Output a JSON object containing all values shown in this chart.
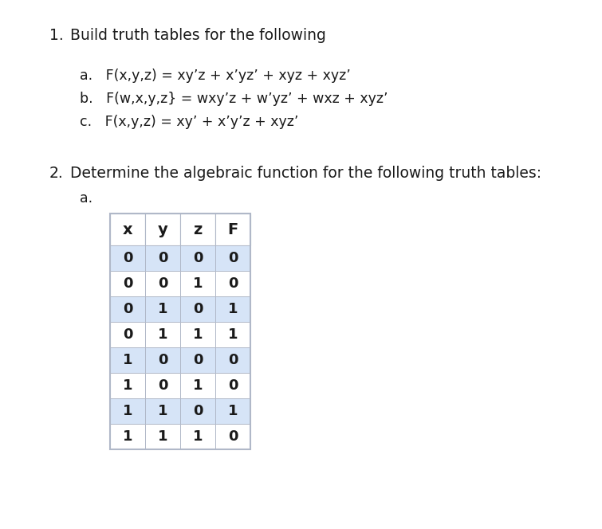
{
  "title1_num": "1.",
  "title1_text": "Build truth tables for the following",
  "item_a": "a.   F(x,y,z) = xy’z + x’yz’ + xyz + xyz’",
  "item_b": "b.   F(w,x,y,z} = wxy’z + w’yz’ + wxz + xyz’",
  "item_c": "c.   F(x,y,z) = xy’ + x’y’z + xyz’",
  "title2_num": "2.",
  "title2_text": "Determine the algebraic function for the following truth tables:",
  "sub_a": "a.",
  "table_headers": [
    "x",
    "y",
    "z",
    "F"
  ],
  "table_data": [
    [
      0,
      0,
      0,
      0
    ],
    [
      0,
      0,
      1,
      0
    ],
    [
      0,
      1,
      0,
      1
    ],
    [
      0,
      1,
      1,
      1
    ],
    [
      1,
      0,
      0,
      0
    ],
    [
      1,
      0,
      1,
      0
    ],
    [
      1,
      1,
      0,
      1
    ],
    [
      1,
      1,
      1,
      0
    ]
  ],
  "header_bg": "#ffffff",
  "row_alt_bg": "#d6e4f7",
  "row_white_bg": "#ffffff",
  "text_color": "#1a1a1a",
  "border_color": "#b0b8c8",
  "font_size_title": 13.5,
  "font_size_text": 12.5,
  "font_size_table": 13,
  "bg_color": "#ffffff"
}
